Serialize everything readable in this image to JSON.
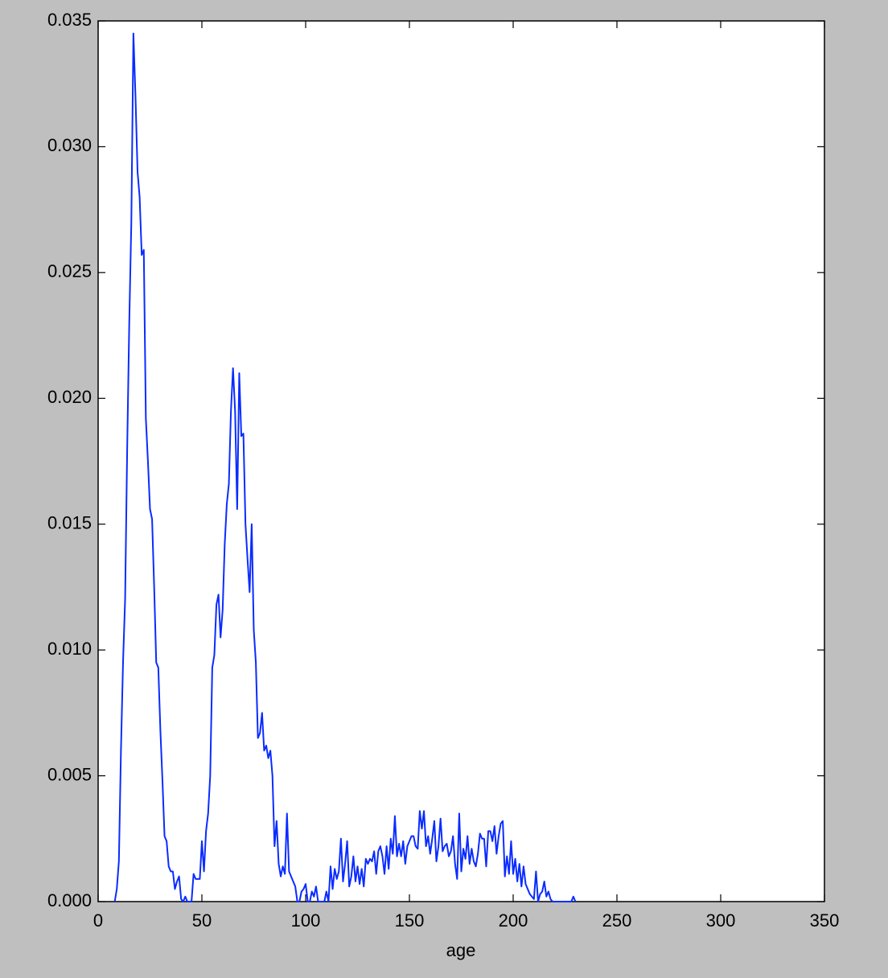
{
  "chart_data": {
    "type": "line",
    "xlabel": "age",
    "xlim": [
      0,
      350
    ],
    "xticks": [
      0,
      50,
      100,
      150,
      200,
      250,
      300,
      350
    ],
    "ylim": [
      0,
      0.035
    ],
    "yticks": [
      {
        "value": 0,
        "label": "0.000"
      },
      0.005,
      {
        "value": 0.01,
        "label": "0.010"
      },
      0.015,
      {
        "value": 0.02,
        "label": "0.020"
      },
      0.025,
      {
        "value": 0.03,
        "label": "0.030"
      },
      0.035
    ],
    "grid": false,
    "series": [
      {
        "color": "#0a2cff",
        "x": [
          8,
          9,
          10,
          11,
          12,
          13,
          14,
          15,
          16,
          17,
          18,
          19,
          20,
          21,
          22,
          23,
          24,
          25,
          26,
          27,
          28,
          29,
          30,
          31,
          32,
          33,
          34,
          35,
          36,
          37,
          38,
          39,
          40,
          41,
          42,
          43,
          44,
          45,
          46,
          47,
          48,
          49,
          50,
          51,
          52,
          53,
          54,
          55,
          56,
          57,
          58,
          59,
          60,
          61,
          62,
          63,
          64,
          65,
          66,
          67,
          68,
          69,
          70,
          71,
          72,
          73,
          74,
          75,
          76,
          77,
          78,
          79,
          80,
          81,
          82,
          83,
          84,
          85,
          86,
          87,
          88,
          89,
          90,
          91,
          92,
          93,
          94,
          95,
          96,
          97,
          98,
          99,
          100,
          101,
          102,
          103,
          104,
          105,
          106,
          107,
          108,
          109,
          110,
          111,
          112,
          113,
          114,
          115,
          116,
          117,
          118,
          119,
          120,
          121,
          122,
          123,
          124,
          125,
          126,
          127,
          128,
          129,
          130,
          131,
          132,
          133,
          134,
          135,
          136,
          137,
          138,
          139,
          140,
          141,
          142,
          143,
          144,
          145,
          146,
          147,
          148,
          149,
          150,
          151,
          152,
          153,
          154,
          155,
          156,
          157,
          158,
          159,
          160,
          161,
          162,
          163,
          164,
          165,
          166,
          167,
          168,
          169,
          170,
          171,
          172,
          173,
          174,
          175,
          176,
          177,
          178,
          179,
          180,
          181,
          182,
          183,
          184,
          185,
          186,
          187,
          188,
          189,
          190,
          191,
          192,
          193,
          194,
          195,
          196,
          197,
          198,
          199,
          200,
          201,
          202,
          203,
          204,
          205,
          206,
          207,
          208,
          209,
          210,
          211,
          212,
          213,
          214,
          215,
          216,
          217,
          218,
          219,
          220,
          221,
          222,
          223,
          224,
          225,
          226,
          227,
          228,
          229,
          230
        ],
        "values": [
          0,
          0.0005,
          0.0016,
          0.006,
          0.0095,
          0.012,
          0.018,
          0.023,
          0.027,
          0.0345,
          0.032,
          0.029,
          0.028,
          0.0257,
          0.0259,
          0.0192,
          0.0175,
          0.0156,
          0.0152,
          0.0125,
          0.0095,
          0.0093,
          0.0068,
          0.0048,
          0.0026,
          0.0024,
          0.0014,
          0.0012,
          0.0012,
          0.0005,
          0.0008,
          0.001,
          0.0001,
          0,
          0.0002,
          0,
          0,
          0,
          0.0011,
          0.0009,
          0.0009,
          0.0009,
          0.0024,
          0.0012,
          0.0028,
          0.0035,
          0.005,
          0.0093,
          0.0098,
          0.0118,
          0.0122,
          0.0105,
          0.0116,
          0.0142,
          0.0158,
          0.0166,
          0.0195,
          0.0212,
          0.0195,
          0.0156,
          0.021,
          0.0185,
          0.0186,
          0.015,
          0.0136,
          0.0123,
          0.015,
          0.0108,
          0.0095,
          0.0065,
          0.0067,
          0.0075,
          0.006,
          0.0062,
          0.0057,
          0.006,
          0.005,
          0.0022,
          0.0032,
          0.0015,
          0.001,
          0.0014,
          0.0011,
          0.0035,
          0.0012,
          0.001,
          0.0008,
          0.0006,
          0,
          0,
          0.0004,
          0.0005,
          0.0007,
          0,
          0,
          0.0004,
          0.0002,
          0.0006,
          0,
          0,
          0,
          0,
          0.0004,
          0,
          0.0014,
          0.0005,
          0.0013,
          0.0009,
          0.0012,
          0.0025,
          0.0008,
          0.0015,
          0.0024,
          0.0006,
          0.001,
          0.0018,
          0.0008,
          0.0014,
          0.0007,
          0.0013,
          0.0006,
          0.0017,
          0.0015,
          0.0017,
          0.0016,
          0.002,
          0.0011,
          0.002,
          0.0022,
          0.0018,
          0.0011,
          0.0022,
          0.0013,
          0.0025,
          0.0019,
          0.0034,
          0.0018,
          0.0023,
          0.0018,
          0.0024,
          0.0015,
          0.0022,
          0.0024,
          0.0026,
          0.0026,
          0.0022,
          0.0021,
          0.0036,
          0.0029,
          0.0036,
          0.0022,
          0.0026,
          0.0019,
          0.0025,
          0.0032,
          0.0016,
          0.0022,
          0.0033,
          0.002,
          0.0022,
          0.0023,
          0.0018,
          0.002,
          0.0026,
          0.0015,
          0.0009,
          0.0035,
          0.0012,
          0.0021,
          0.0017,
          0.0026,
          0.0015,
          0.0021,
          0.0016,
          0.0014,
          0.0019,
          0.0027,
          0.0025,
          0.0025,
          0.0014,
          0.0028,
          0.0028,
          0.0024,
          0.003,
          0.0019,
          0.0026,
          0.0031,
          0.0032,
          0.001,
          0.0018,
          0.0011,
          0.0024,
          0.0011,
          0.0017,
          0.0008,
          0.0015,
          0.0006,
          0.0014,
          0.0007,
          0.0005,
          0.0003,
          0.0002,
          0.0001,
          0.0012,
          0,
          0.0003,
          0.0004,
          0.0008,
          0.0002,
          0.0004,
          0.0001,
          0,
          0,
          0,
          0,
          0,
          0,
          0,
          0,
          0,
          0,
          0.0002,
          0
        ]
      }
    ]
  }
}
